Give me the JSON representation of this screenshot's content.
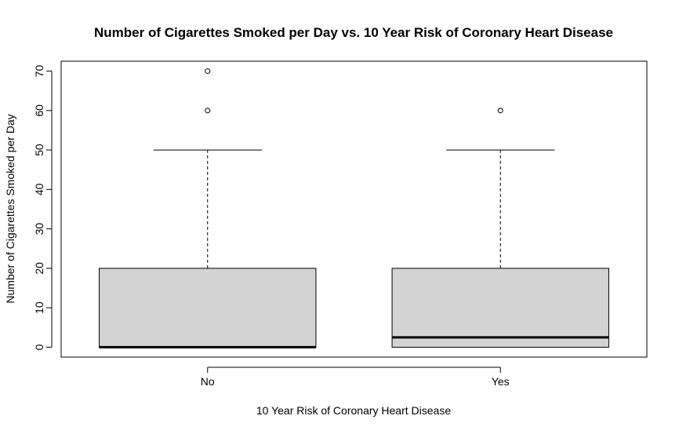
{
  "chart_data": {
    "type": "boxplot",
    "title": "Number of Cigarettes Smoked per Day vs. 10 Year Risk of Coronary Heart Disease",
    "xlabel": "10 Year Risk of Coronary Heart Disease",
    "ylabel": "Number of Cigarettes Smoked per Day",
    "categories": [
      "No",
      "Yes"
    ],
    "ylim": [
      -2.5,
      72.5
    ],
    "yticks": [
      0,
      10,
      20,
      30,
      40,
      50,
      60,
      70
    ],
    "grid": false,
    "box_fill": "#d3d3d3",
    "boxes": [
      {
        "category": "No",
        "whisker_low": 0,
        "q1": 0,
        "median": 0,
        "q3": 20,
        "whisker_high": 50,
        "outliers": [
          60,
          70
        ]
      },
      {
        "category": "Yes",
        "whisker_low": 0,
        "q1": 0,
        "median": 2.5,
        "q3": 20,
        "whisker_high": 50,
        "outliers": [
          60
        ]
      }
    ]
  }
}
